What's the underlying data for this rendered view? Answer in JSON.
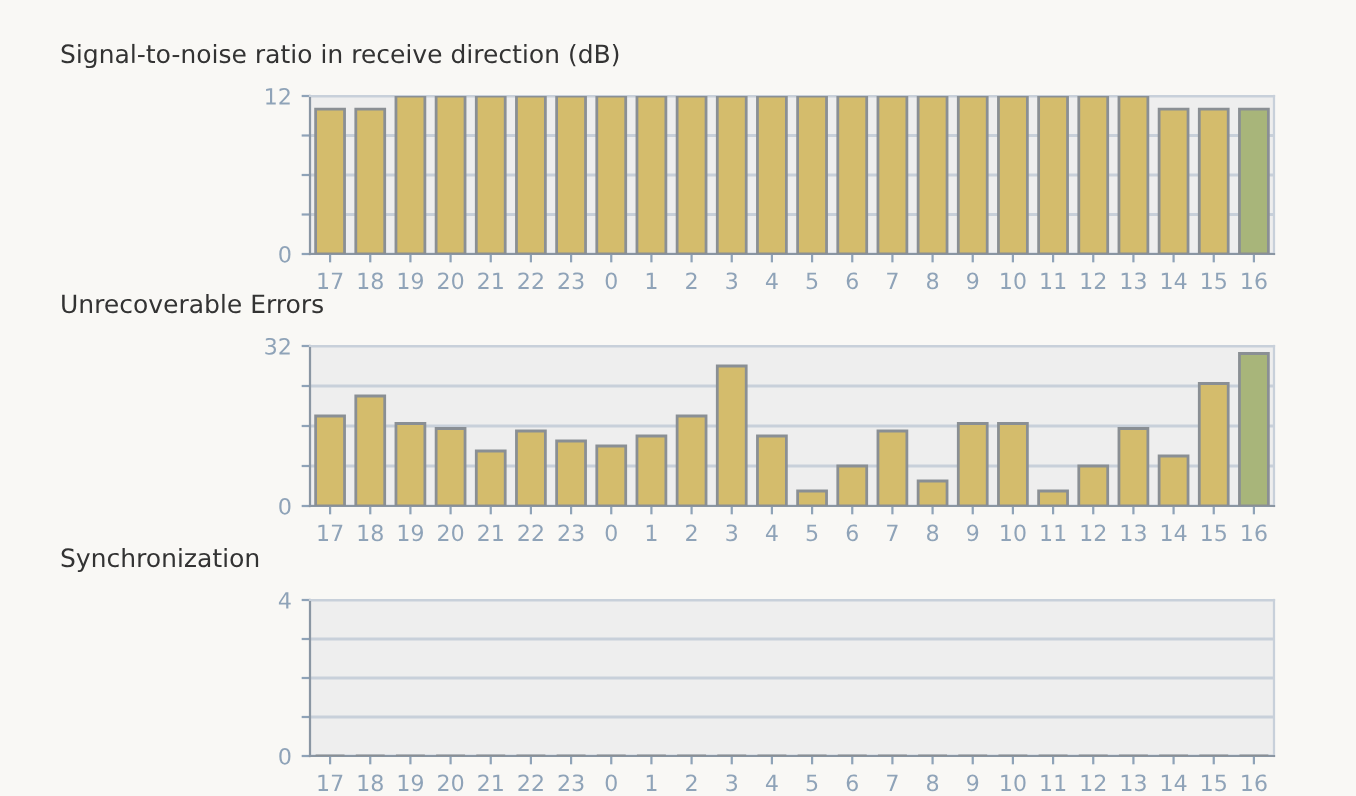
{
  "chart_data": [
    {
      "type": "bar",
      "title": "Signal-to-noise ratio in receive direction (dB)",
      "categories": [
        "17",
        "18",
        "19",
        "20",
        "21",
        "22",
        "23",
        "0",
        "1",
        "2",
        "3",
        "4",
        "5",
        "6",
        "7",
        "8",
        "9",
        "10",
        "11",
        "12",
        "13",
        "14",
        "15",
        "16"
      ],
      "values": [
        11,
        11,
        12,
        12,
        12,
        12,
        12,
        12,
        12,
        12,
        12,
        12,
        12,
        12,
        12,
        12,
        12,
        12,
        12,
        12,
        12,
        11,
        11,
        11
      ],
      "colors": [
        "#d4bc6c",
        "#d4bc6c",
        "#d4bc6c",
        "#d4bc6c",
        "#d4bc6c",
        "#d4bc6c",
        "#d4bc6c",
        "#d4bc6c",
        "#d4bc6c",
        "#d4bc6c",
        "#d4bc6c",
        "#d4bc6c",
        "#d4bc6c",
        "#d4bc6c",
        "#d4bc6c",
        "#d4bc6c",
        "#d4bc6c",
        "#d4bc6c",
        "#d4bc6c",
        "#d4bc6c",
        "#d4bc6c",
        "#d4bc6c",
        "#d4bc6c",
        "#a8b57a"
      ],
      "ylim": [
        0,
        12
      ],
      "yticks": [
        0,
        {
          "value": 3,
          "label": null
        },
        {
          "value": 6,
          "label": null
        },
        {
          "value": 9,
          "label": null
        },
        12
      ],
      "grid": "y"
    },
    {
      "type": "bar",
      "title": "Unrecoverable Errors",
      "categories": [
        "17",
        "18",
        "19",
        "20",
        "21",
        "22",
        "23",
        "0",
        "1",
        "2",
        "3",
        "4",
        "5",
        "6",
        "7",
        "8",
        "9",
        "10",
        "11",
        "12",
        "13",
        "14",
        "15",
        "16"
      ],
      "values": [
        18,
        22,
        16.5,
        15.5,
        11,
        15,
        13,
        12,
        14,
        18,
        28,
        14,
        3,
        8,
        15,
        5,
        16.5,
        16.5,
        3,
        8,
        15.5,
        10,
        24.5,
        30.5
      ],
      "colors": [
        "#d4bc6c",
        "#d4bc6c",
        "#d4bc6c",
        "#d4bc6c",
        "#d4bc6c",
        "#d4bc6c",
        "#d4bc6c",
        "#d4bc6c",
        "#d4bc6c",
        "#d4bc6c",
        "#d4bc6c",
        "#d4bc6c",
        "#d4bc6c",
        "#d4bc6c",
        "#d4bc6c",
        "#d4bc6c",
        "#d4bc6c",
        "#d4bc6c",
        "#d4bc6c",
        "#d4bc6c",
        "#d4bc6c",
        "#d4bc6c",
        "#d4bc6c",
        "#a8b57a"
      ],
      "ylim": [
        0,
        32
      ],
      "yticks": [
        0,
        {
          "value": 8,
          "label": null
        },
        {
          "value": 16,
          "label": null
        },
        {
          "value": 24,
          "label": null
        },
        32
      ],
      "grid": "y"
    },
    {
      "type": "bar",
      "title": "Synchronization",
      "categories": [
        "17",
        "18",
        "19",
        "20",
        "21",
        "22",
        "23",
        "0",
        "1",
        "2",
        "3",
        "4",
        "5",
        "6",
        "7",
        "8",
        "9",
        "10",
        "11",
        "12",
        "13",
        "14",
        "15",
        "16"
      ],
      "values": [
        0,
        0,
        0,
        0,
        0,
        0,
        0,
        0,
        0,
        0,
        0,
        0,
        0,
        0,
        0,
        0,
        0,
        0,
        0,
        0,
        0,
        0,
        0,
        0
      ],
      "ylim": [
        0,
        4
      ],
      "yticks": [
        0,
        {
          "value": 1,
          "label": null
        },
        {
          "value": 2,
          "label": null
        },
        {
          "value": 3,
          "label": null
        },
        4
      ],
      "grid": "y"
    }
  ]
}
